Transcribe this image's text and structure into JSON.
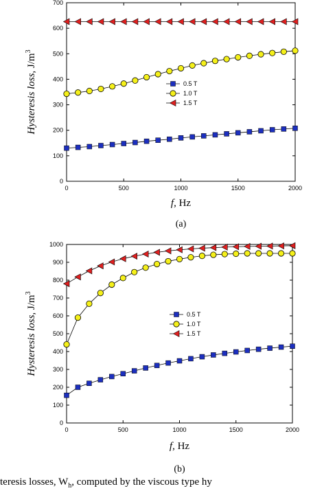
{
  "caption_fragment": "teresis losses, W",
  "caption_subscript": "h",
  "caption_tail": ", computed by the viscous type hy",
  "chart_data": [
    {
      "type": "line",
      "panel_label": "(a)",
      "xlabel_symbol": "f",
      "xlabel_unit": ", Hz",
      "ylabel_text": "Hysteresis loss",
      "ylabel_unit": ", J/m",
      "ylabel_unit_sup": "3",
      "xlim": [
        0,
        2000
      ],
      "ylim": [
        0,
        700
      ],
      "xticks": [
        0,
        500,
        1000,
        1500,
        2000
      ],
      "yticks": [
        0,
        100,
        200,
        300,
        400,
        500,
        600,
        700
      ],
      "x": [
        0,
        100,
        200,
        300,
        400,
        500,
        600,
        700,
        800,
        900,
        1000,
        1100,
        1200,
        1300,
        1400,
        1500,
        1600,
        1700,
        1800,
        1900,
        2000
      ],
      "legend_position": "center-right",
      "series": [
        {
          "name": "0.5 T",
          "marker": "square",
          "color": "#1c2fbf",
          "values": [
            130,
            133,
            136,
            140,
            144,
            148,
            152,
            157,
            161,
            165,
            170,
            174,
            178,
            182,
            186,
            190,
            194,
            198,
            202,
            205,
            208
          ]
        },
        {
          "name": "1.0 T",
          "marker": "circle",
          "color": "#f5f01a",
          "values": [
            343,
            348,
            354,
            362,
            372,
            383,
            395,
            408,
            420,
            432,
            443,
            454,
            463,
            472,
            479,
            486,
            492,
            498,
            503,
            508,
            512
          ]
        },
        {
          "name": "1.5 T",
          "marker": "triangle-left",
          "color": "#e02020",
          "values": [
            626,
            626,
            626,
            626,
            626,
            626,
            626,
            626,
            626,
            626,
            626,
            626,
            626,
            626,
            626,
            626,
            626,
            626,
            626,
            626,
            626
          ]
        }
      ]
    },
    {
      "type": "line",
      "panel_label": "(b)",
      "xlabel_symbol": "f",
      "xlabel_unit": ", Hz",
      "ylabel_text": "Hysteresis loss",
      "ylabel_unit": ", J/m",
      "ylabel_unit_sup": "3",
      "xlim": [
        0,
        2000
      ],
      "ylim": [
        0,
        1000
      ],
      "xticks": [
        0,
        500,
        1000,
        1500,
        2000
      ],
      "yticks": [
        0,
        100,
        200,
        300,
        400,
        500,
        600,
        700,
        800,
        900,
        1000
      ],
      "x": [
        0,
        100,
        200,
        300,
        400,
        500,
        600,
        700,
        800,
        900,
        1000,
        1100,
        1200,
        1300,
        1400,
        1500,
        1600,
        1700,
        1800,
        1900,
        2000
      ],
      "legend_position": "center-right",
      "series": [
        {
          "name": "0.5 T",
          "marker": "square",
          "color": "#1c2fbf",
          "values": [
            155,
            200,
            222,
            242,
            260,
            276,
            292,
            308,
            322,
            336,
            348,
            360,
            371,
            381,
            390,
            398,
            406,
            413,
            419,
            425,
            430
          ]
        },
        {
          "name": "1.0 T",
          "marker": "circle",
          "color": "#f5f01a",
          "values": [
            440,
            590,
            668,
            728,
            775,
            812,
            845,
            870,
            890,
            906,
            918,
            928,
            936,
            942,
            946,
            948,
            950,
            950,
            950,
            950,
            950
          ]
        },
        {
          "name": "1.5 T",
          "marker": "triangle-left",
          "color": "#e02020",
          "values": [
            780,
            818,
            852,
            880,
            902,
            920,
            934,
            946,
            956,
            964,
            970,
            975,
            979,
            982,
            985,
            987,
            989,
            990,
            991,
            992,
            993
          ]
        }
      ]
    }
  ]
}
